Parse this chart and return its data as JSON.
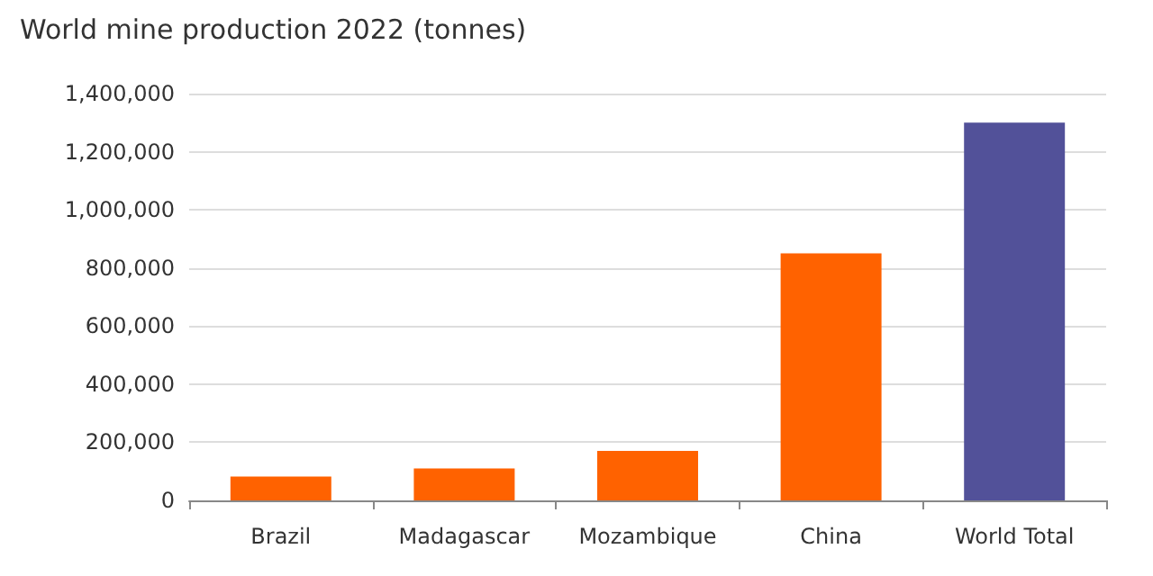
{
  "chart_data": {
    "type": "bar",
    "title": "World mine production 2022 (tonnes)",
    "categories": [
      "Brazil",
      "Madagascar",
      "Mozambique",
      "China",
      "World Total"
    ],
    "values": [
      82000,
      110000,
      170000,
      850000,
      1300000
    ],
    "colors": [
      "#ff6200",
      "#ff6200",
      "#ff6200",
      "#ff6200",
      "#525199"
    ],
    "ylim": [
      0,
      1400000
    ],
    "yticks": [
      {
        "value": 0,
        "label": "0"
      },
      {
        "value": 200000,
        "label": "200,000"
      },
      {
        "value": 400000,
        "label": "400,000"
      },
      {
        "value": 600000,
        "label": "600,000"
      },
      {
        "value": 800000,
        "label": "800,000"
      },
      {
        "value": 1000000,
        "label": "1,000,000"
      },
      {
        "value": 1200000,
        "label": "1,200,000"
      },
      {
        "value": 1400000,
        "label": "1,400,000"
      }
    ],
    "grid": "y"
  }
}
